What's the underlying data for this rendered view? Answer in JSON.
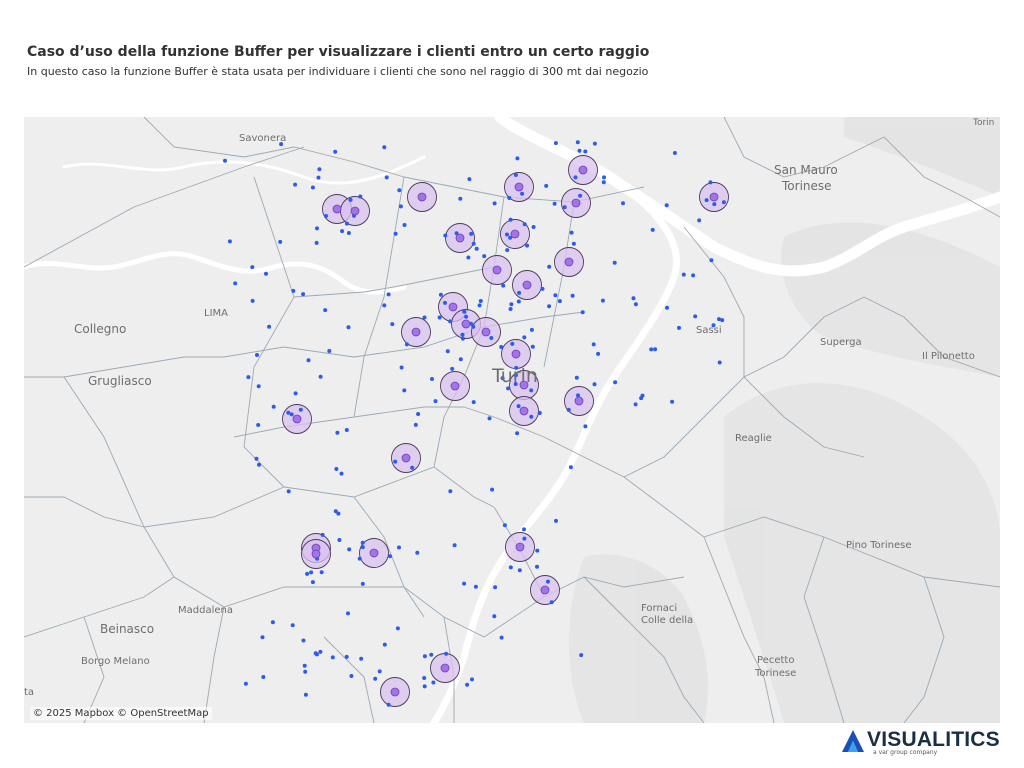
{
  "title": "Caso d’uso della funzione Buffer per visualizzare i clienti entro un certo raggio",
  "subtitle": "In questo caso la funzione Buffer è stata usata per individuare i clienti che sono nel raggio di 300 mt dai negozio",
  "attribution": "© 2025 Mapbox © OpenStreetMap",
  "logo": {
    "name": "VISUALITICS",
    "tagline": "a var group company"
  },
  "colors": {
    "land": "#eeeeee",
    "water": "#ffffff",
    "borders": "#9aa9b6",
    "customer": "#2a5cf0",
    "buffer_fill": "#d9c2f0",
    "buffer_stroke": "#4a3a5a",
    "store": "#a374e8"
  },
  "place_labels": [
    {
      "text": "Savonera",
      "major": false
    },
    {
      "text": "Torin",
      "major": false
    },
    {
      "text": "San Mauro",
      "major": false
    },
    {
      "text": "Torinese",
      "major": false
    },
    {
      "text": "Collegno",
      "major": false
    },
    {
      "text": "LIMA",
      "major": false
    },
    {
      "text": "Sassi",
      "major": false
    },
    {
      "text": "Superga",
      "major": false
    },
    {
      "text": "Il Pilonetto",
      "major": false
    },
    {
      "text": "Grugliasco",
      "major": false
    },
    {
      "text": "Turin",
      "major": true
    },
    {
      "text": "Reaglie",
      "major": false
    },
    {
      "text": "Pino Torinese",
      "major": false
    },
    {
      "text": "Fornaci",
      "major": false
    },
    {
      "text": "Colle della",
      "major": false
    },
    {
      "text": "Maddalena",
      "major": false
    },
    {
      "text": "Beinasco",
      "major": false
    },
    {
      "text": "Borgo Melano",
      "major": false
    },
    {
      "text": "Pecetto",
      "major": false
    },
    {
      "text": "Torinese",
      "major": false
    },
    {
      "text": "ta",
      "major": false
    }
  ],
  "stores_count": 30,
  "customers_count": 250
}
